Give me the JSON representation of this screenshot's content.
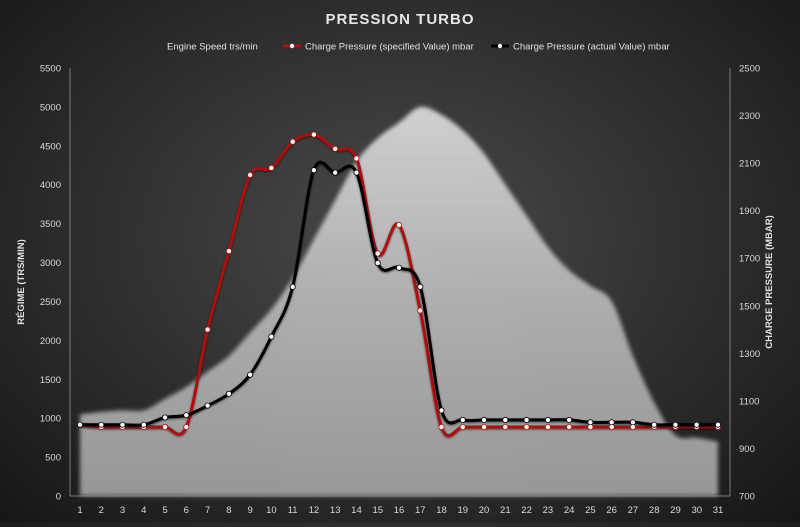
{
  "chart_data": {
    "type": "area+line",
    "title": "PRESSION TURBO",
    "y_left_label": "RÉGIME (TRS/MIN)",
    "y_right_label": "CHARGE PRESSURE (MBAR)",
    "y_left_range": [
      0,
      5500
    ],
    "y_right_range": [
      700,
      2500
    ],
    "y_left_ticks": [
      0,
      500,
      1000,
      1500,
      2000,
      2500,
      3000,
      3500,
      4000,
      4500,
      5000,
      5500
    ],
    "y_right_ticks": [
      700,
      900,
      1100,
      1300,
      1500,
      1700,
      1900,
      2100,
      2300,
      2500
    ],
    "x": [
      1,
      2,
      3,
      4,
      5,
      6,
      7,
      8,
      9,
      10,
      11,
      12,
      13,
      14,
      15,
      16,
      17,
      18,
      19,
      20,
      21,
      22,
      23,
      24,
      25,
      26,
      27,
      28,
      29,
      30,
      31
    ],
    "legend_position": "top",
    "grid": false,
    "series": [
      {
        "name": "Engine Speed  trs/min",
        "axis": "left",
        "kind": "area",
        "color": "#bdbdbd",
        "values": [
          1050,
          1080,
          1100,
          1100,
          1250,
          1400,
          1600,
          1800,
          2100,
          2400,
          2800,
          3300,
          3800,
          4300,
          4600,
          4800,
          5000,
          4900,
          4700,
          4400,
          4000,
          3600,
          3200,
          2900,
          2700,
          2500,
          1800,
          1200,
          780,
          750,
          700
        ]
      },
      {
        "name": "Charge Pressure (specified Value)  mbar",
        "axis": "right",
        "kind": "line",
        "color": "#b01010",
        "values": [
          1000,
          990,
          990,
          990,
          990,
          990,
          1400,
          1730,
          2050,
          2080,
          2190,
          2220,
          2160,
          2120,
          1720,
          1840,
          1480,
          990,
          990,
          990,
          990,
          990,
          990,
          990,
          990,
          990,
          990,
          990,
          990,
          990,
          990
        ]
      },
      {
        "name": "Charge Pressure (actual Value)  mbar",
        "axis": "right",
        "kind": "line",
        "color": "#000000",
        "values": [
          1000,
          1000,
          1000,
          1000,
          1030,
          1040,
          1080,
          1130,
          1210,
          1370,
          1580,
          2070,
          2060,
          2060,
          1680,
          1660,
          1580,
          1060,
          1020,
          1020,
          1020,
          1020,
          1020,
          1020,
          1010,
          1010,
          1010,
          1000,
          1000,
          1000,
          1000
        ]
      }
    ]
  }
}
